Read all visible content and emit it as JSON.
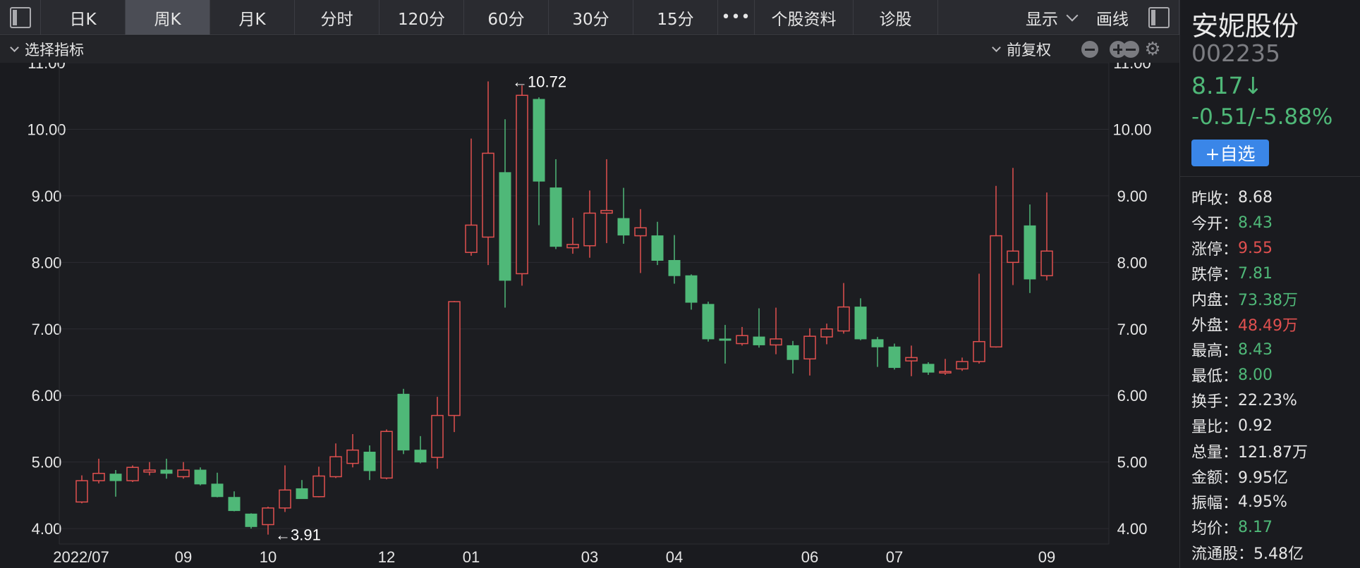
{
  "toolbar": {
    "periods": [
      "日K",
      "周K",
      "月K",
      "分时",
      "120分",
      "60分",
      "30分",
      "15分"
    ],
    "active_period": "周K",
    "more_label": "•••",
    "profile_label": "个股资料",
    "diagnose_label": "诊股",
    "display_label": "显示",
    "draw_label": "画线"
  },
  "subbar": {
    "indicator_label": "选择指标",
    "adjust_label": "前复权"
  },
  "stock": {
    "name": "安妮股份",
    "code": "002235",
    "price": "8.17",
    "arrow": "↓",
    "change": "-0.51/-5.88%",
    "watch_label": "+自选"
  },
  "stats": [
    {
      "label": "昨收：",
      "value": "8.68",
      "color": "neutral"
    },
    {
      "label": "今开：",
      "value": "8.43",
      "color": "green"
    },
    {
      "label": "涨停：",
      "value": "9.55",
      "color": "red"
    },
    {
      "label": "跌停：",
      "value": "7.81",
      "color": "green"
    },
    {
      "label": "内盘：",
      "value": "73.38万",
      "color": "green"
    },
    {
      "label": "外盘：",
      "value": "48.49万",
      "color": "red"
    },
    {
      "label": "最高：",
      "value": "8.43",
      "color": "green"
    },
    {
      "label": "最低：",
      "value": "8.00",
      "color": "green"
    },
    {
      "label": "换手：",
      "value": "22.23%",
      "color": "neutral"
    },
    {
      "label": "量比：",
      "value": "0.92",
      "color": "neutral"
    },
    {
      "label": "总量：",
      "value": "121.87万",
      "color": "neutral"
    },
    {
      "label": "金额：",
      "value": "9.95亿",
      "color": "neutral"
    },
    {
      "label": "振幅：",
      "value": "4.95%",
      "color": "neutral"
    },
    {
      "label": "均价：",
      "value": "8.17",
      "color": "green"
    },
    {
      "label": "流通股：",
      "value": "5.48亿",
      "color": "neutral"
    }
  ],
  "colors": {
    "up": "#e0504f",
    "down": "#4fb878",
    "grid": "#2c2d32",
    "axis_text": "#e6e6e6",
    "annotation": "#ffffff"
  },
  "chart_data": {
    "type": "candlestick",
    "ylim": [
      3.8,
      11.0
    ],
    "yticks": [
      "4.00",
      "5.00",
      "6.00",
      "7.00",
      "8.00",
      "9.00",
      "10.00",
      "11.00"
    ],
    "xtick_labels": [
      {
        "label": "2022/07",
        "index": 0
      },
      {
        "label": "09",
        "index": 6
      },
      {
        "label": "10",
        "index": 11
      },
      {
        "label": "12",
        "index": 18
      },
      {
        "label": "01",
        "index": 23
      },
      {
        "label": "03",
        "index": 30
      },
      {
        "label": "04",
        "index": 35
      },
      {
        "label": "06",
        "index": 43
      },
      {
        "label": "07",
        "index": 48
      },
      {
        "label": "09",
        "index": 57
      }
    ],
    "annotations": [
      {
        "text": "←10.72",
        "index": 25,
        "value": 10.72
      },
      {
        "text": "←3.91",
        "index": 11,
        "value": 3.91
      }
    ],
    "candles": [
      {
        "o": 4.4,
        "h": 4.8,
        "l": 4.38,
        "c": 4.72
      },
      {
        "o": 4.72,
        "h": 5.05,
        "l": 4.68,
        "c": 4.83
      },
      {
        "o": 4.82,
        "h": 4.88,
        "l": 4.48,
        "c": 4.72
      },
      {
        "o": 4.72,
        "h": 4.95,
        "l": 4.7,
        "c": 4.92
      },
      {
        "o": 4.85,
        "h": 5.0,
        "l": 4.8,
        "c": 4.88
      },
      {
        "o": 4.88,
        "h": 5.05,
        "l": 4.75,
        "c": 4.83
      },
      {
        "o": 4.78,
        "h": 5.0,
        "l": 4.75,
        "c": 4.88
      },
      {
        "o": 4.88,
        "h": 4.92,
        "l": 4.65,
        "c": 4.67
      },
      {
        "o": 4.67,
        "h": 4.84,
        "l": 4.47,
        "c": 4.48
      },
      {
        "o": 4.47,
        "h": 4.56,
        "l": 4.26,
        "c": 4.27
      },
      {
        "o": 4.22,
        "h": 4.23,
        "l": 4.0,
        "c": 4.03
      },
      {
        "o": 4.06,
        "h": 4.33,
        "l": 3.91,
        "c": 4.31
      },
      {
        "o": 4.31,
        "h": 4.95,
        "l": 4.25,
        "c": 4.58
      },
      {
        "o": 4.6,
        "h": 4.73,
        "l": 4.45,
        "c": 4.45
      },
      {
        "o": 4.48,
        "h": 4.93,
        "l": 4.47,
        "c": 4.79
      },
      {
        "o": 4.78,
        "h": 5.28,
        "l": 4.76,
        "c": 5.08
      },
      {
        "o": 4.98,
        "h": 5.42,
        "l": 4.92,
        "c": 5.18
      },
      {
        "o": 5.15,
        "h": 5.25,
        "l": 4.73,
        "c": 4.87
      },
      {
        "o": 4.76,
        "h": 5.49,
        "l": 4.74,
        "c": 5.46
      },
      {
        "o": 6.02,
        "h": 6.1,
        "l": 5.12,
        "c": 5.18
      },
      {
        "o": 5.18,
        "h": 5.39,
        "l": 4.98,
        "c": 5.0
      },
      {
        "o": 5.07,
        "h": 5.98,
        "l": 4.9,
        "c": 5.7
      },
      {
        "o": 5.7,
        "h": 7.42,
        "l": 5.45,
        "c": 7.41
      },
      {
        "o": 8.15,
        "h": 9.86,
        "l": 8.1,
        "c": 8.56
      },
      {
        "o": 8.38,
        "h": 10.72,
        "l": 7.96,
        "c": 9.64
      },
      {
        "o": 9.35,
        "h": 10.15,
        "l": 7.32,
        "c": 7.73
      },
      {
        "o": 7.83,
        "h": 10.66,
        "l": 7.65,
        "c": 10.51
      },
      {
        "o": 10.45,
        "h": 10.48,
        "l": 8.56,
        "c": 9.22
      },
      {
        "o": 9.12,
        "h": 9.55,
        "l": 8.2,
        "c": 8.24
      },
      {
        "o": 8.22,
        "h": 8.67,
        "l": 8.13,
        "c": 8.27
      },
      {
        "o": 8.25,
        "h": 9.08,
        "l": 8.07,
        "c": 8.74
      },
      {
        "o": 8.74,
        "h": 9.55,
        "l": 8.29,
        "c": 8.78
      },
      {
        "o": 8.66,
        "h": 9.12,
        "l": 8.28,
        "c": 8.41
      },
      {
        "o": 8.4,
        "h": 8.8,
        "l": 7.84,
        "c": 8.52
      },
      {
        "o": 8.4,
        "h": 8.61,
        "l": 7.96,
        "c": 8.03
      },
      {
        "o": 8.03,
        "h": 8.41,
        "l": 7.68,
        "c": 7.8
      },
      {
        "o": 7.8,
        "h": 7.82,
        "l": 7.29,
        "c": 7.4
      },
      {
        "o": 7.37,
        "h": 7.41,
        "l": 6.81,
        "c": 6.85
      },
      {
        "o": 6.85,
        "h": 7.06,
        "l": 6.48,
        "c": 6.83
      },
      {
        "o": 6.78,
        "h": 7.03,
        "l": 6.75,
        "c": 6.9
      },
      {
        "o": 6.88,
        "h": 7.31,
        "l": 6.72,
        "c": 6.76
      },
      {
        "o": 6.76,
        "h": 7.32,
        "l": 6.62,
        "c": 6.85
      },
      {
        "o": 6.75,
        "h": 6.82,
        "l": 6.33,
        "c": 6.54
      },
      {
        "o": 6.55,
        "h": 7.01,
        "l": 6.3,
        "c": 6.89
      },
      {
        "o": 6.88,
        "h": 7.08,
        "l": 6.77,
        "c": 7.0
      },
      {
        "o": 6.97,
        "h": 7.69,
        "l": 6.93,
        "c": 7.33
      },
      {
        "o": 7.33,
        "h": 7.46,
        "l": 6.83,
        "c": 6.85
      },
      {
        "o": 6.84,
        "h": 6.88,
        "l": 6.43,
        "c": 6.73
      },
      {
        "o": 6.73,
        "h": 6.78,
        "l": 6.39,
        "c": 6.42
      },
      {
        "o": 6.52,
        "h": 6.75,
        "l": 6.29,
        "c": 6.57
      },
      {
        "o": 6.47,
        "h": 6.5,
        "l": 6.31,
        "c": 6.35
      },
      {
        "o": 6.34,
        "h": 6.55,
        "l": 6.31,
        "c": 6.36
      },
      {
        "o": 6.4,
        "h": 6.57,
        "l": 6.37,
        "c": 6.51
      },
      {
        "o": 6.51,
        "h": 7.83,
        "l": 6.48,
        "c": 6.81
      },
      {
        "o": 6.73,
        "h": 9.15,
        "l": 6.72,
        "c": 8.4
      },
      {
        "o": 8.0,
        "h": 9.42,
        "l": 7.66,
        "c": 8.17
      },
      {
        "o": 8.55,
        "h": 8.87,
        "l": 7.54,
        "c": 7.75
      },
      {
        "o": 7.8,
        "h": 9.05,
        "l": 7.73,
        "c": 8.17
      }
    ]
  }
}
